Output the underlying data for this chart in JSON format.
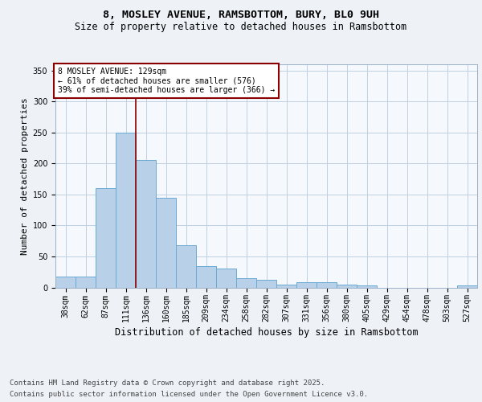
{
  "title1": "8, MOSLEY AVENUE, RAMSBOTTOM, BURY, BL0 9UH",
  "title2": "Size of property relative to detached houses in Ramsbottom",
  "xlabel": "Distribution of detached houses by size in Ramsbottom",
  "ylabel": "Number of detached properties",
  "categories": [
    "38sqm",
    "62sqm",
    "87sqm",
    "111sqm",
    "136sqm",
    "160sqm",
    "185sqm",
    "209sqm",
    "234sqm",
    "258sqm",
    "282sqm",
    "307sqm",
    "331sqm",
    "356sqm",
    "380sqm",
    "405sqm",
    "429sqm",
    "454sqm",
    "478sqm",
    "503sqm",
    "527sqm"
  ],
  "values": [
    18,
    18,
    160,
    250,
    205,
    145,
    68,
    35,
    30,
    15,
    12,
    5,
    8,
    8,
    5,
    3,
    0,
    0,
    0,
    0,
    3
  ],
  "bar_color": "#b8d0e8",
  "bar_edge_color": "#6aaad4",
  "vline_x_idx": 4,
  "vline_color": "#8b0000",
  "annotation_text": "8 MOSLEY AVENUE: 129sqm\n← 61% of detached houses are smaller (576)\n39% of semi-detached houses are larger (366) →",
  "annotation_box_color": "#8b0000",
  "ylim": [
    0,
    360
  ],
  "yticks": [
    0,
    50,
    100,
    150,
    200,
    250,
    300,
    350
  ],
  "footer1": "Contains HM Land Registry data © Crown copyright and database right 2025.",
  "footer2": "Contains public sector information licensed under the Open Government Licence v3.0.",
  "bg_color": "#eef2f7",
  "plot_bg_color": "#f5f8fc",
  "grid_color": "#c0d0e0",
  "title_fontsize": 9.5,
  "subtitle_fontsize": 8.5,
  "axis_label_fontsize": 8,
  "tick_fontsize": 7,
  "annotation_fontsize": 7,
  "footer_fontsize": 6.5
}
